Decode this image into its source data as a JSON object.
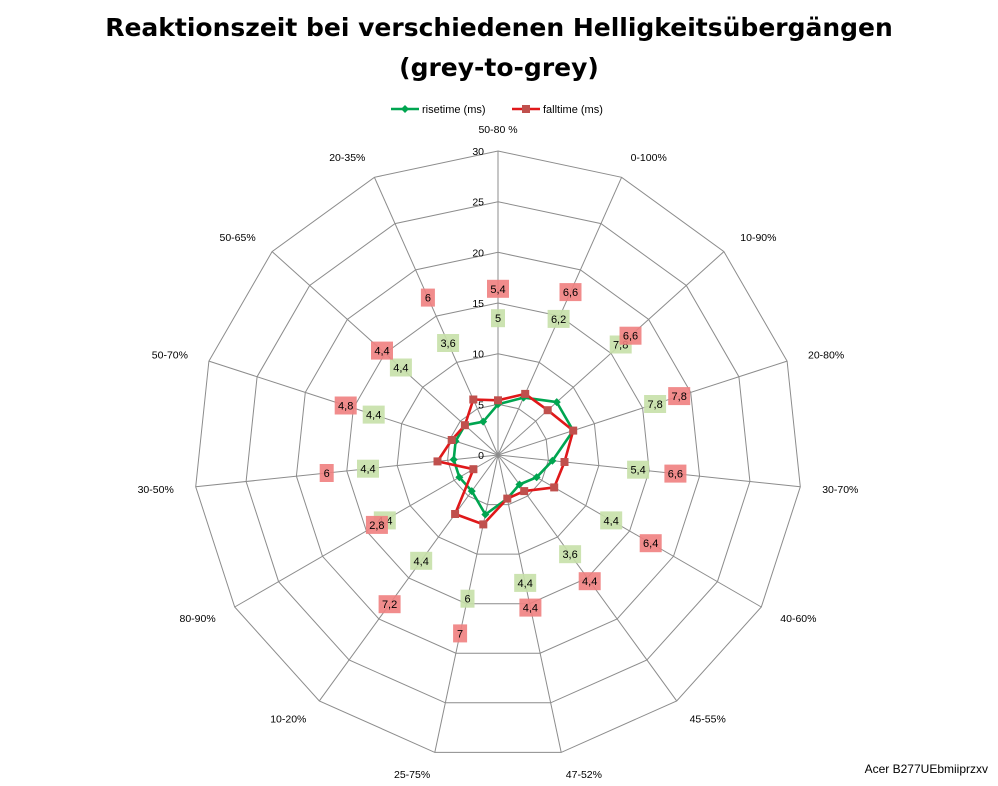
{
  "chart_data": {
    "type": "radar",
    "title": "Reaktionszeit bei verschiedenen Helligkeitsübergängen",
    "subtitle": "(grey-to-grey)",
    "categories": [
      "50-80 %",
      "0-100%",
      "10-90%",
      "20-80%",
      "30-70%",
      "40-60%",
      "45-55%",
      "47-52%",
      "25-75%",
      "10-20%",
      "80-90%",
      "30-50%",
      "50-70%",
      "50-65%",
      "20-35%"
    ],
    "series": [
      {
        "name": "risetime (ms)",
        "color": "#00A550",
        "marker": "diamond",
        "label_color": "#C6E0A8",
        "values": [
          5,
          6.2,
          7.8,
          7.8,
          5.4,
          4.4,
          3.6,
          4.4,
          6,
          4.4,
          4.4,
          4.4,
          4.4,
          4.4,
          3.6
        ]
      },
      {
        "name": "falltime (ms)",
        "color": "#E0181A",
        "marker": "square",
        "marker_color": "#C0504D",
        "label_color": "#F08080",
        "values": [
          5.4,
          6.6,
          6.6,
          7.8,
          6.6,
          6.4,
          4.4,
          4.4,
          7,
          7.2,
          2.8,
          6,
          4.8,
          4.4,
          6
        ]
      }
    ],
    "r_axis": {
      "min": 0,
      "max": 30,
      "step": 5,
      "ticks": [
        "0",
        "5",
        "10",
        "15",
        "20",
        "25",
        "30"
      ]
    },
    "legend_position": "top",
    "grid": true
  },
  "footer": {
    "model": "Acer B277UEbmiiprzxv"
  }
}
